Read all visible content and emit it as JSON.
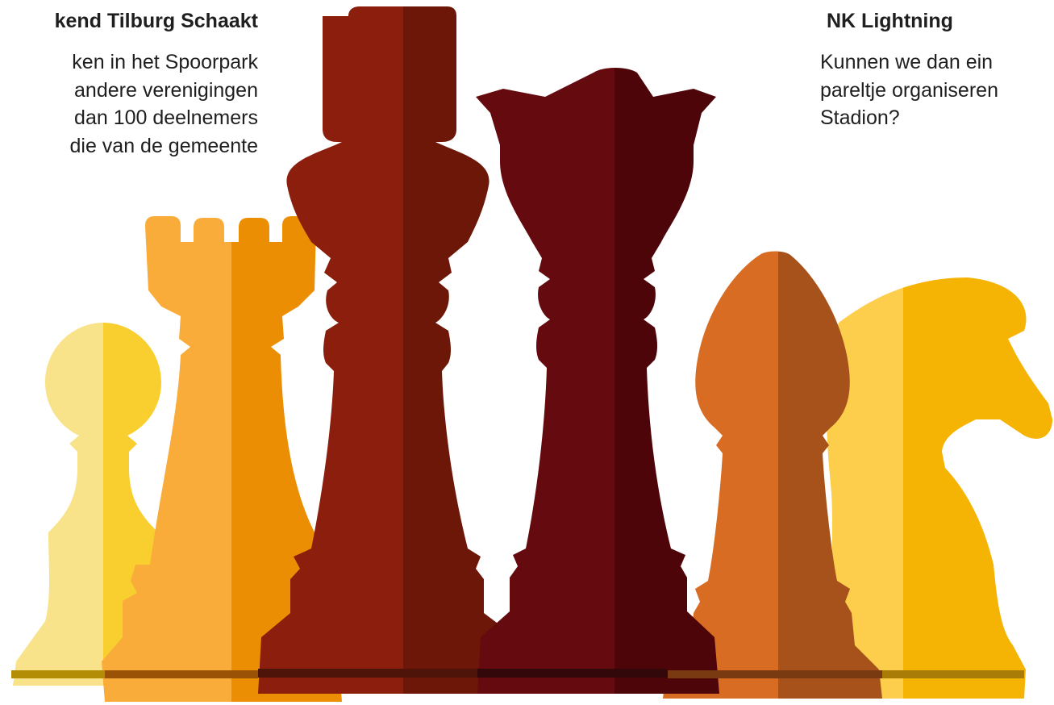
{
  "left_block": {
    "title": "kend Tilburg Schaakt",
    "lines": [
      "ken in het Spoorpark",
      "andere verenigingen",
      "dan 100 deelnemers",
      "die van de gemeente"
    ]
  },
  "right_block": {
    "title": "NK Lightning",
    "lines": [
      "Kunnen we dan ein",
      "pareltje organiseren",
      "Stadion?"
    ]
  },
  "chess_pieces": [
    {
      "piece": "pawn",
      "colors": [
        "#f9e38a",
        "#f8cf2e"
      ]
    },
    {
      "piece": "rook",
      "colors": [
        "#f9ac3a",
        "#ec8e04"
      ]
    },
    {
      "piece": "king",
      "colors": [
        "#8c1e0d",
        "#6c1708"
      ]
    },
    {
      "piece": "queen",
      "colors": [
        "#650a0e",
        "#4e0509"
      ]
    },
    {
      "piece": "bishop",
      "colors": [
        "#d86c22",
        "#a7521b"
      ]
    },
    {
      "piece": "knight",
      "colors": [
        "#fdcd4c",
        "#f5b304"
      ]
    }
  ]
}
